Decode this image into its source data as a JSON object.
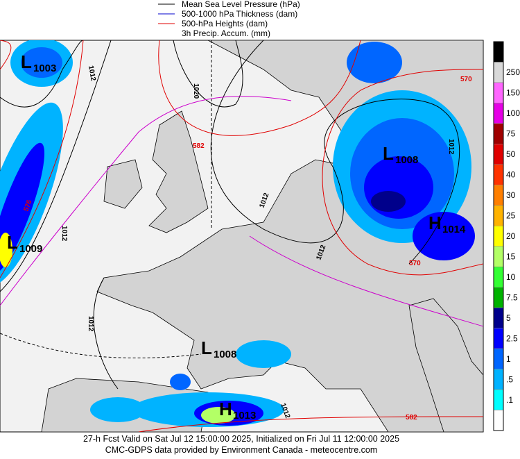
{
  "legend": [
    "Mean Sea Level Pressure (hPa)",
    "500-1000 hPa Thickness (dam)",
    "500-hPa Heights (dam)",
    "3h Precip. Accum. (mm)"
  ],
  "colorbar": [
    {
      "label": "250",
      "color": "#d9d9d9"
    },
    {
      "label": "150",
      "color": "#ff66ff"
    },
    {
      "label": "100",
      "color": "#e600e6"
    },
    {
      "label": "75",
      "color": "#a00000"
    },
    {
      "label": "50",
      "color": "#e00000"
    },
    {
      "label": "40",
      "color": "#ff3300"
    },
    {
      "label": "30",
      "color": "#ff7f00"
    },
    {
      "label": "25",
      "color": "#ffb300"
    },
    {
      "label": "20",
      "color": "#ffff00"
    },
    {
      "label": "15",
      "color": "#b3ff66"
    },
    {
      "label": "10",
      "color": "#33ff33"
    },
    {
      "label": "7.5",
      "color": "#00b300"
    },
    {
      "label": "5",
      "color": "#00008b"
    },
    {
      "label": "2.5",
      "color": "#0000ff"
    },
    {
      "label": "1",
      "color": "#0066ff"
    },
    {
      "label": ".5",
      "color": "#00b3ff"
    },
    {
      "label": ".1",
      "color": "#00ffff"
    }
  ],
  "centers": [
    {
      "letter": "L",
      "value": "1003"
    },
    {
      "letter": "L",
      "value": "1009"
    },
    {
      "letter": "L",
      "value": "1008"
    },
    {
      "letter": "H",
      "value": "1014"
    },
    {
      "letter": "L",
      "value": "1008"
    },
    {
      "letter": "H",
      "value": "1013"
    }
  ],
  "contour_labels": [
    "1012",
    "1020",
    "582",
    "576",
    "1012",
    "1012",
    "570",
    "1012",
    "570",
    "1012",
    "1012",
    "1012",
    "582"
  ],
  "footer": [
    "27-h Fcst Valid on Sat Jul 12 15:00:00 2025, Initialized on Fri Jul 11 12:00:00 2025",
    "CMC-GDPS data provided by Environment Canada - meteocentre.com"
  ]
}
